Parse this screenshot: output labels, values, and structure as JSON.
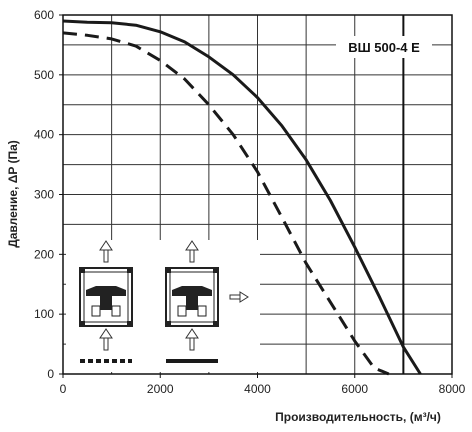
{
  "chart_data": {
    "type": "line",
    "model_label": "ВШ  500-4 Е",
    "xlabel": "Производительность, (м³/ч)",
    "ylabel": "Давление, ΔP (Па)",
    "xlim": [
      0,
      8000
    ],
    "ylim": [
      0,
      600
    ],
    "x_ticks": [
      0,
      2000,
      4000,
      6000,
      8000
    ],
    "y_ticks": [
      0,
      100,
      200,
      300,
      400,
      500,
      600
    ],
    "grid": true,
    "colors": {
      "line": "#1a1a1a",
      "grid": "#333333"
    },
    "series": [
      {
        "style": "solid",
        "x": [
          0,
          500,
          1000,
          1500,
          2000,
          2500,
          3000,
          3500,
          4000,
          4500,
          5000,
          5500,
          6000,
          6500,
          7000,
          7350
        ],
        "y": [
          590,
          588,
          587,
          583,
          572,
          555,
          530,
          500,
          462,
          415,
          358,
          290,
          212,
          130,
          45,
          0
        ]
      },
      {
        "style": "dashed",
        "x": [
          0,
          500,
          1000,
          1500,
          2000,
          2500,
          3000,
          3500,
          4000,
          4500,
          5000,
          5500,
          6000,
          6400,
          6700
        ],
        "y": [
          570,
          566,
          560,
          548,
          524,
          493,
          450,
          400,
          338,
          262,
          185,
          120,
          55,
          10,
          0
        ]
      }
    ]
  }
}
